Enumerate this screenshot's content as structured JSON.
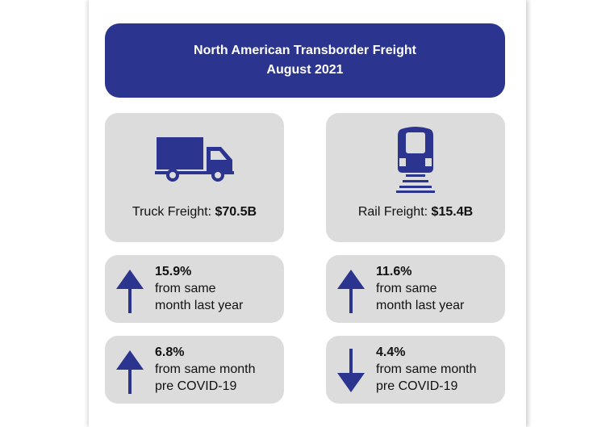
{
  "header": {
    "title": "North American Transborder Freight",
    "subtitle": "August 2021"
  },
  "colors": {
    "brand": "#2b3590",
    "card": "#dcdcdc"
  },
  "truck": {
    "label": "Truck Freight:",
    "value": "$70.5B",
    "icon": "truck-icon",
    "vs_last_year": {
      "percent": "15.9%",
      "line1": "from same",
      "line2": "month last year",
      "direction": "up"
    },
    "vs_pre_covid": {
      "percent": "6.8%",
      "line1": "from same month",
      "line2": "pre COVID-19",
      "direction": "up"
    }
  },
  "rail": {
    "label": "Rail Freight:",
    "value": "$15.4B",
    "icon": "train-icon",
    "vs_last_year": {
      "percent": "11.6%",
      "line1": "from same",
      "line2": "month last year",
      "direction": "up"
    },
    "vs_pre_covid": {
      "percent": "4.4%",
      "line1": "from same month",
      "line2": "pre COVID-19",
      "direction": "down"
    }
  }
}
